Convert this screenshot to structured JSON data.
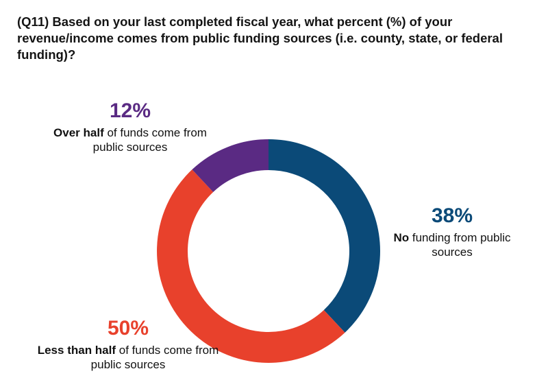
{
  "chart_data": {
    "type": "pie",
    "title": "(Q11) Based on your last completed fiscal year, what percent (%) of your revenue/income comes from public funding sources (i.e. county, state, or federal funding)?",
    "slices": [
      {
        "id": "none",
        "value": 38,
        "label": "38%",
        "emphasis": "No",
        "rest": " funding from public sources",
        "color": "#0b4a78"
      },
      {
        "id": "less",
        "value": 50,
        "label": "50%",
        "emphasis": "Less than half",
        "rest": " of funds come from public sources",
        "color": "#e8412c"
      },
      {
        "id": "over",
        "value": 12,
        "label": "12%",
        "emphasis": "Over half",
        "rest": " of funds come from public sources",
        "color": "#5a2a83"
      }
    ],
    "donut": true
  }
}
